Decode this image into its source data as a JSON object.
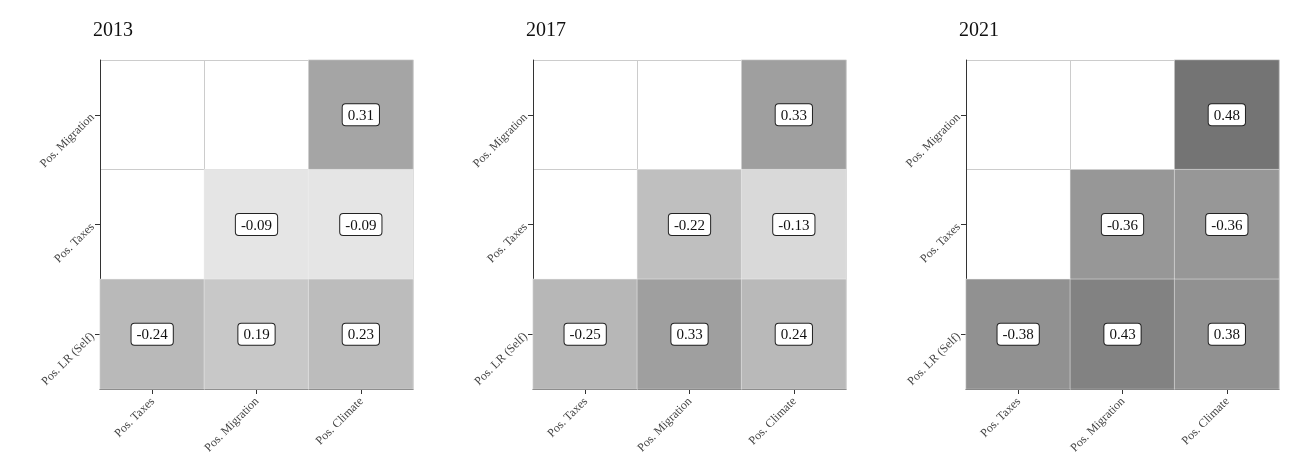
{
  "chart_data": [
    {
      "type": "heatmap",
      "title": "2013",
      "categories": [
        "Pos. Taxes",
        "Pos. Migration",
        "Pos. Climate"
      ],
      "y_categories": [
        "Pos. Migration",
        "Pos. Taxes",
        "Pos. LR (Self)"
      ],
      "cells": [
        [
          null,
          null,
          0.31
        ],
        [
          null,
          -0.09,
          -0.09
        ],
        [
          -0.24,
          0.19,
          0.23
        ]
      ],
      "data_labels": true,
      "grid": true
    },
    {
      "type": "heatmap",
      "title": "2017",
      "categories": [
        "Pos. Taxes",
        "Pos. Migration",
        "Pos. Climate"
      ],
      "y_categories": [
        "Pos. Migration",
        "Pos. Taxes",
        "Pos. LR (Self)"
      ],
      "cells": [
        [
          null,
          null,
          0.33
        ],
        [
          null,
          -0.22,
          -0.13
        ],
        [
          -0.25,
          0.33,
          0.24
        ]
      ],
      "data_labels": true,
      "grid": true
    },
    {
      "type": "heatmap",
      "title": "2021",
      "categories": [
        "Pos. Taxes",
        "Pos. Migration",
        "Pos. Climate"
      ],
      "y_categories": [
        "Pos. Migration",
        "Pos. Taxes",
        "Pos. LR (Self)"
      ],
      "cells": [
        [
          null,
          null,
          0.48
        ],
        [
          null,
          -0.36,
          -0.36
        ],
        [
          -0.38,
          0.43,
          0.38
        ]
      ],
      "data_labels": true,
      "grid": true
    }
  ]
}
